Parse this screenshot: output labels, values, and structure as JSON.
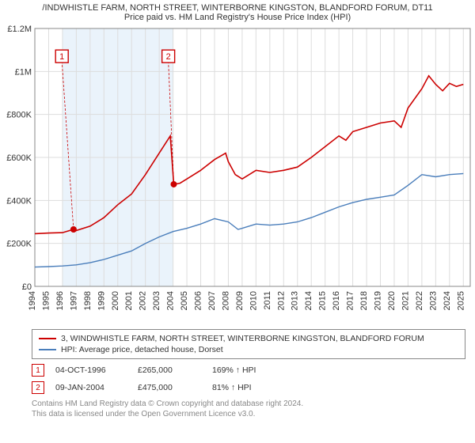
{
  "title_main": "/INDWHISTLE FARM, NORTH STREET, WINTERBORNE KINGSTON, BLANDFORD FORUM, DT11",
  "title_sub": "Price paid vs. HM Land Registry's House Price Index (HPI)",
  "chart": {
    "type": "line",
    "background_color": "#ffffff",
    "highlight_band_color": "#eaf3fb",
    "grid_color": "#dddddd",
    "axis_color": "#888888",
    "xlim": [
      1994,
      2025.5
    ],
    "ylim": [
      0,
      1200000
    ],
    "yticks": [
      0,
      200000,
      400000,
      600000,
      800000,
      1000000,
      1200000
    ],
    "ytick_labels": [
      "£0",
      "£200K",
      "£400K",
      "£600K",
      "£800K",
      "£1M",
      "£1.2M"
    ],
    "xticks": [
      1994,
      1995,
      1996,
      1997,
      1998,
      1999,
      2000,
      2001,
      2002,
      2003,
      2004,
      2005,
      2006,
      2007,
      2008,
      2009,
      2010,
      2011,
      2012,
      2013,
      2014,
      2015,
      2016,
      2017,
      2018,
      2019,
      2020,
      2021,
      2022,
      2023,
      2024,
      2025
    ],
    "highlight_band": [
      1996,
      2004
    ],
    "series": [
      {
        "name": "price_paid",
        "color": "#cc0000",
        "width": 1.6,
        "data": [
          [
            1994,
            245000
          ],
          [
            1995,
            248000
          ],
          [
            1996,
            250000
          ],
          [
            1996.8,
            265000
          ],
          [
            1997,
            260000
          ],
          [
            1998,
            280000
          ],
          [
            1999,
            320000
          ],
          [
            2000,
            380000
          ],
          [
            2001,
            430000
          ],
          [
            2002,
            520000
          ],
          [
            2003,
            620000
          ],
          [
            2003.8,
            700000
          ],
          [
            2004.05,
            475000
          ],
          [
            2004.5,
            480000
          ],
          [
            2005,
            500000
          ],
          [
            2006,
            540000
          ],
          [
            2007,
            590000
          ],
          [
            2007.8,
            620000
          ],
          [
            2008,
            580000
          ],
          [
            2008.5,
            520000
          ],
          [
            2009,
            500000
          ],
          [
            2010,
            540000
          ],
          [
            2011,
            530000
          ],
          [
            2012,
            540000
          ],
          [
            2013,
            555000
          ],
          [
            2014,
            600000
          ],
          [
            2015,
            650000
          ],
          [
            2016,
            700000
          ],
          [
            2016.5,
            680000
          ],
          [
            2017,
            720000
          ],
          [
            2018,
            740000
          ],
          [
            2019,
            760000
          ],
          [
            2020,
            770000
          ],
          [
            2020.5,
            740000
          ],
          [
            2021,
            830000
          ],
          [
            2022,
            920000
          ],
          [
            2022.5,
            980000
          ],
          [
            2023,
            940000
          ],
          [
            2023.5,
            910000
          ],
          [
            2024,
            945000
          ],
          [
            2024.5,
            930000
          ],
          [
            2025,
            940000
          ]
        ]
      },
      {
        "name": "hpi",
        "color": "#4a7ebb",
        "width": 1.4,
        "data": [
          [
            1994,
            90000
          ],
          [
            1995,
            92000
          ],
          [
            1996,
            95000
          ],
          [
            1997,
            100000
          ],
          [
            1998,
            110000
          ],
          [
            1999,
            125000
          ],
          [
            2000,
            145000
          ],
          [
            2001,
            165000
          ],
          [
            2002,
            200000
          ],
          [
            2003,
            230000
          ],
          [
            2004,
            255000
          ],
          [
            2005,
            270000
          ],
          [
            2006,
            290000
          ],
          [
            2007,
            315000
          ],
          [
            2008,
            300000
          ],
          [
            2008.7,
            265000
          ],
          [
            2009,
            270000
          ],
          [
            2010,
            290000
          ],
          [
            2011,
            285000
          ],
          [
            2012,
            290000
          ],
          [
            2013,
            300000
          ],
          [
            2014,
            320000
          ],
          [
            2015,
            345000
          ],
          [
            2016,
            370000
          ],
          [
            2017,
            390000
          ],
          [
            2018,
            405000
          ],
          [
            2019,
            415000
          ],
          [
            2020,
            425000
          ],
          [
            2021,
            470000
          ],
          [
            2022,
            520000
          ],
          [
            2023,
            510000
          ],
          [
            2024,
            520000
          ],
          [
            2025,
            525000
          ]
        ]
      }
    ],
    "sale_markers": [
      {
        "n": "1",
        "x": 1996.8,
        "y": 265000,
        "label_x": 1995.5,
        "label_y": 1100000
      },
      {
        "n": "2",
        "x": 2004.05,
        "y": 475000,
        "label_x": 2003.2,
        "label_y": 1100000
      }
    ]
  },
  "legend": {
    "items": [
      {
        "color": "#cc0000",
        "label": "3, WINDWHISTLE FARM, NORTH STREET, WINTERBORNE KINGSTON, BLANDFORD FORUM"
      },
      {
        "color": "#4a7ebb",
        "label": "HPI: Average price, detached house, Dorset"
      }
    ]
  },
  "sales": [
    {
      "n": "1",
      "date": "04-OCT-1996",
      "price": "£265,000",
      "delta": "169% ↑ HPI"
    },
    {
      "n": "2",
      "date": "09-JAN-2004",
      "price": "£475,000",
      "delta": "81% ↑ HPI"
    }
  ],
  "footer_line1": "Contains HM Land Registry data © Crown copyright and database right 2024.",
  "footer_line2": "This data is licensed under the Open Government Licence v3.0."
}
